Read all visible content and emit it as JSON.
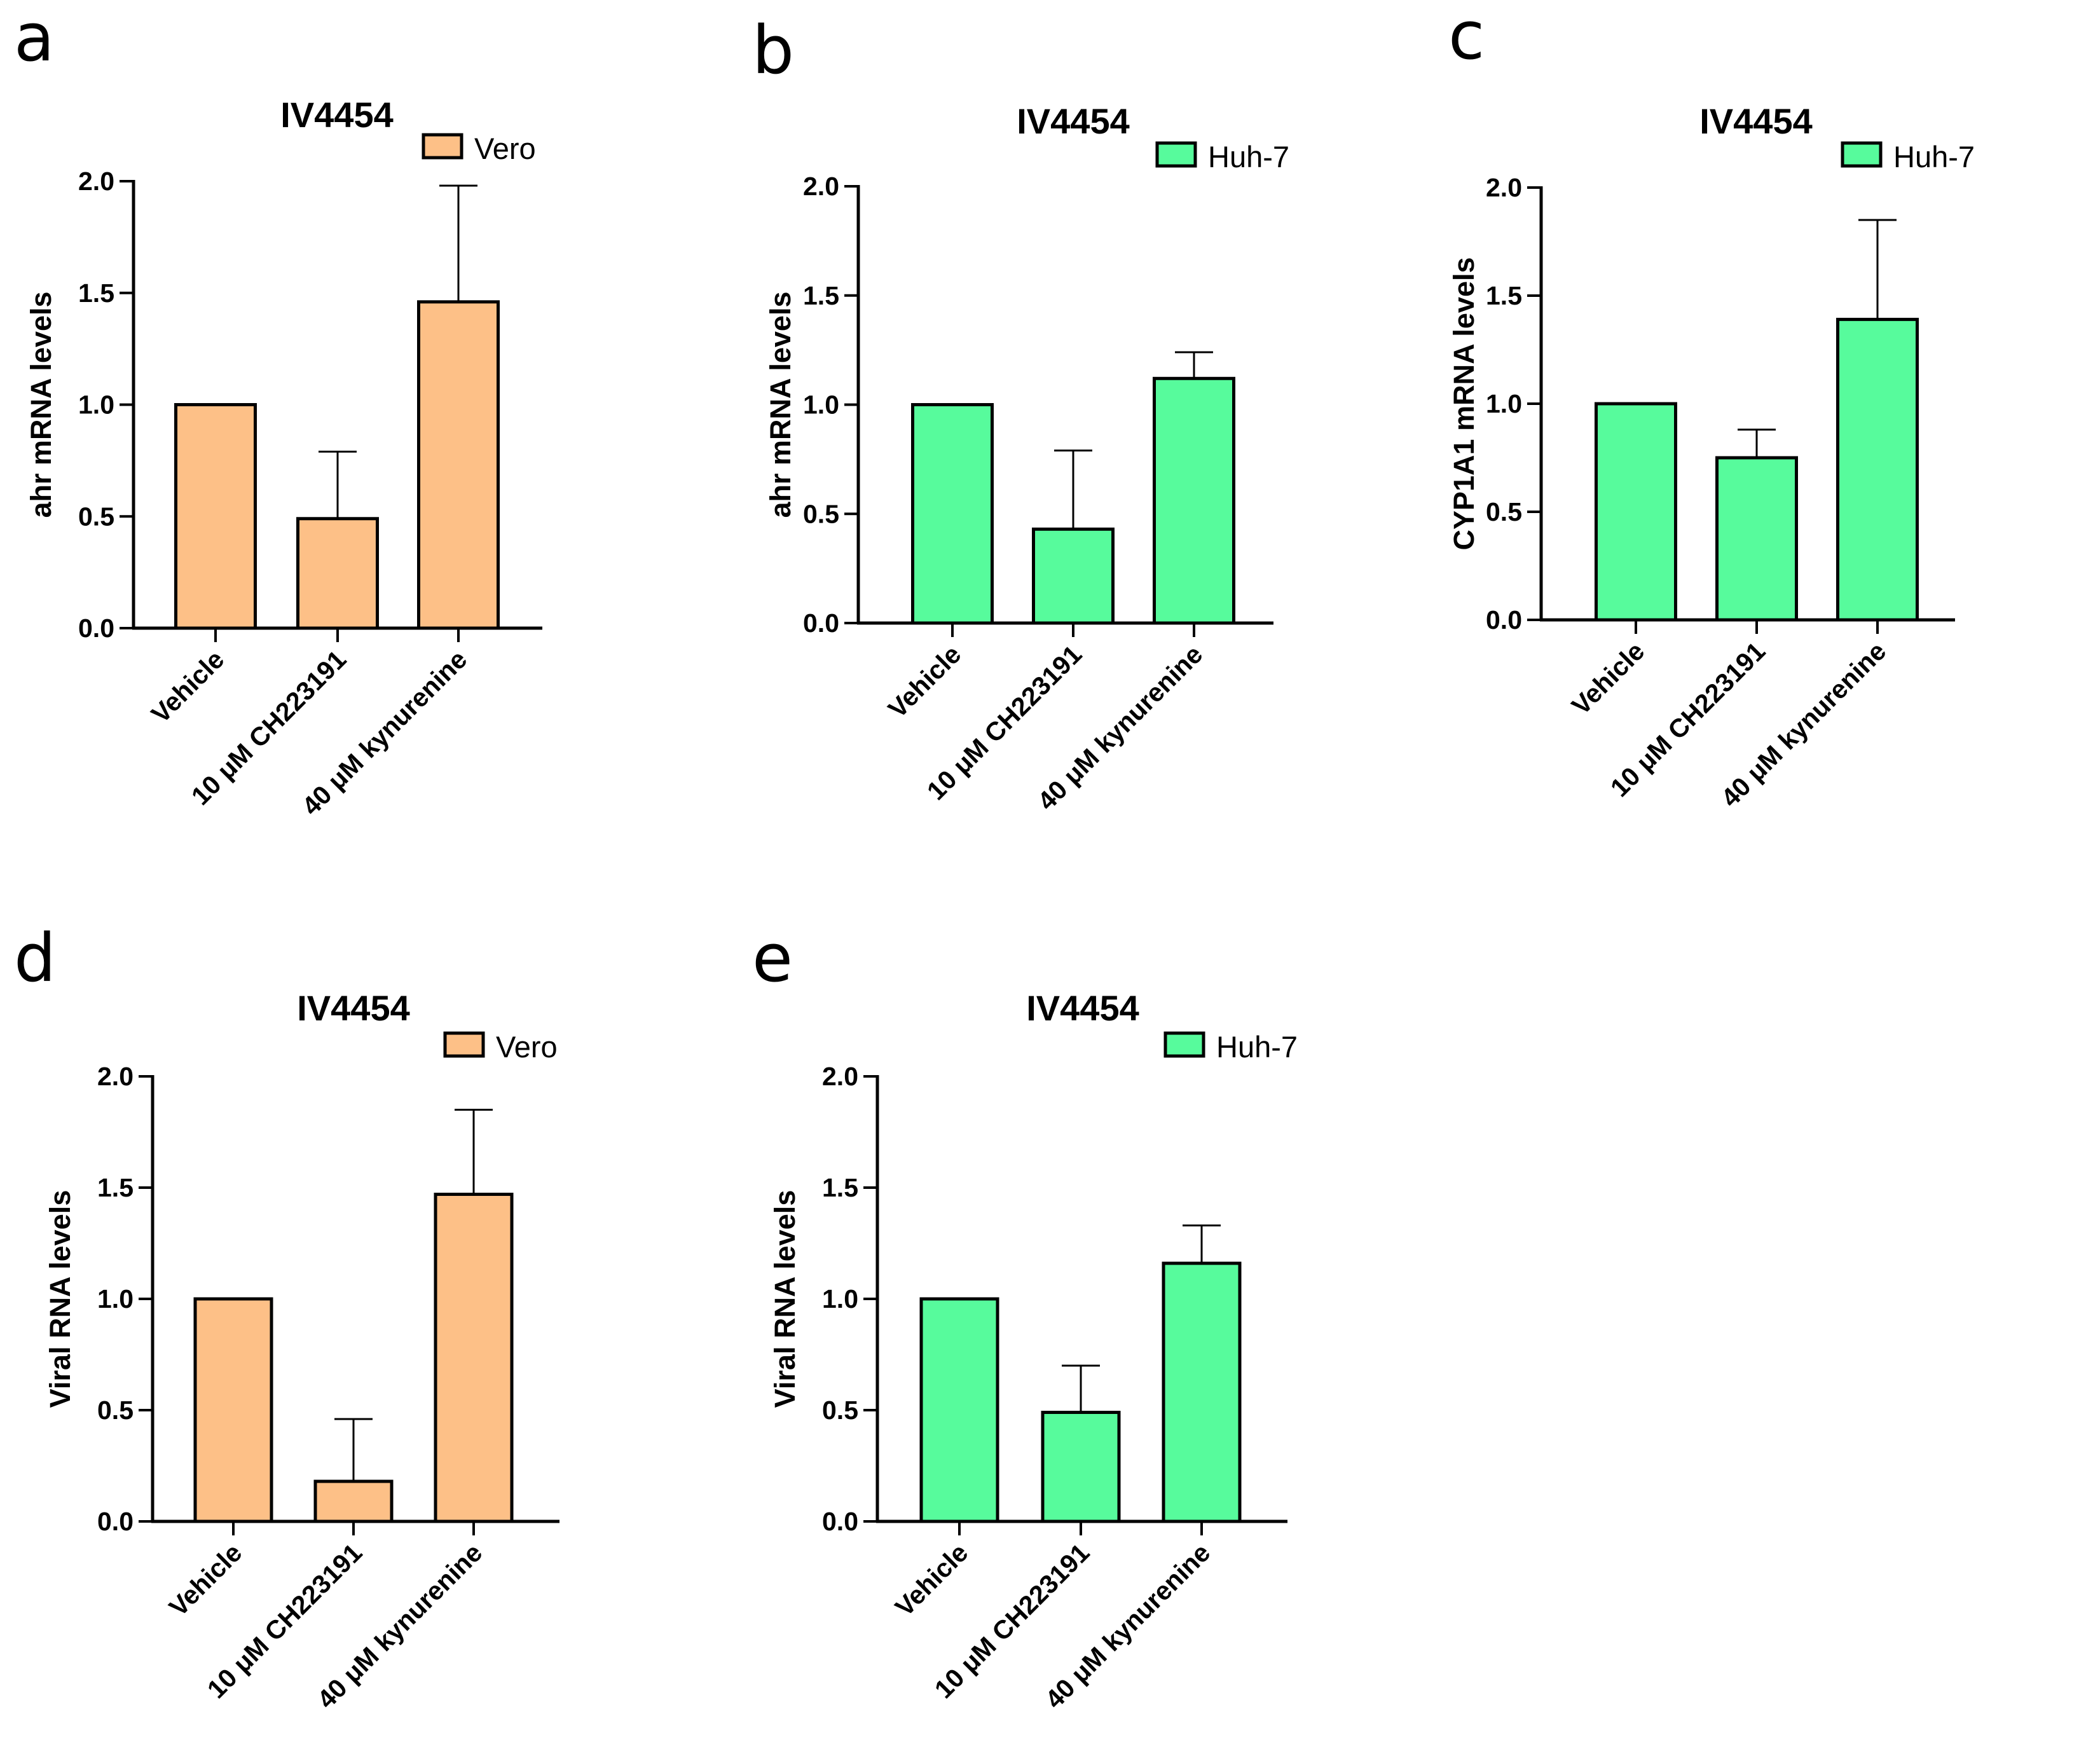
{
  "chart_data": [
    {
      "panel": "a",
      "type": "bar",
      "title": "IV4454",
      "xlabel": "",
      "ylabel": "ahr mRNA levels",
      "ylim": [
        0,
        2.0
      ],
      "yticks": [
        "0.0",
        "0.5",
        "1.0",
        "1.5",
        "2.0"
      ],
      "grid": false,
      "legend": "top-right",
      "categories": [
        "Vehicle",
        "10 μM CH223191",
        "40 μM kynurenine"
      ],
      "series": [
        {
          "name": "Vero",
          "color": "#FDC087",
          "values": [
            1.0,
            0.49,
            1.46
          ],
          "errors": [
            0.0,
            0.3,
            0.52
          ]
        }
      ]
    },
    {
      "panel": "b",
      "type": "bar",
      "title": "IV4454",
      "xlabel": "",
      "ylabel": "ahr mRNA levels",
      "ylim": [
        0,
        2.0
      ],
      "yticks": [
        "0.0",
        "0.5",
        "1.0",
        "1.5",
        "2.0"
      ],
      "grid": false,
      "legend": "top-right",
      "categories": [
        "Vehicle",
        "10 μM CH223191",
        "40 μM kynurenine"
      ],
      "series": [
        {
          "name": "Huh-7",
          "color": "#57FB9C",
          "values": [
            1.0,
            0.43,
            1.12
          ],
          "errors": [
            0.0,
            0.36,
            0.12
          ]
        }
      ]
    },
    {
      "panel": "c",
      "type": "bar",
      "title": "IV4454",
      "xlabel": "",
      "ylabel": "CYP1A1 mRNA levels",
      "ylim": [
        0,
        2.0
      ],
      "yticks": [
        "0.0",
        "0.5",
        "1.0",
        "1.5",
        "2.0"
      ],
      "grid": false,
      "legend": "top-right",
      "categories": [
        "Vehicle",
        "10 μM CH223191",
        "40 μM kynurenine"
      ],
      "series": [
        {
          "name": "Huh-7",
          "color": "#57FB9C",
          "values": [
            1.0,
            0.75,
            1.39
          ],
          "errors": [
            0.0,
            0.13,
            0.46
          ]
        }
      ]
    },
    {
      "panel": "d",
      "type": "bar",
      "title": "IV4454",
      "xlabel": "",
      "ylabel": "Viral RNA levels",
      "ylim": [
        0,
        2.0
      ],
      "yticks": [
        "0.0",
        "0.5",
        "1.0",
        "1.5",
        "2.0"
      ],
      "grid": false,
      "legend": "top-right",
      "categories": [
        "Vehicle",
        "10 μM CH223191",
        "40 μM kynurenine"
      ],
      "series": [
        {
          "name": "Vero",
          "color": "#FDC087",
          "values": [
            1.0,
            0.18,
            1.47
          ],
          "errors": [
            0.0,
            0.28,
            0.38
          ]
        }
      ]
    },
    {
      "panel": "e",
      "type": "bar",
      "title": "IV4454",
      "xlabel": "",
      "ylabel": "Viral RNA levels",
      "ylim": [
        0,
        2.0
      ],
      "yticks": [
        "0.0",
        "0.5",
        "1.0",
        "1.5",
        "2.0"
      ],
      "grid": false,
      "legend": "top-right",
      "categories": [
        "Vehicle",
        "10 μM CH223191",
        "40 μM kynurenine"
      ],
      "series": [
        {
          "name": "Huh-7",
          "color": "#57FB9C",
          "values": [
            1.0,
            0.49,
            1.16
          ],
          "errors": [
            0.0,
            0.21,
            0.17
          ]
        }
      ]
    }
  ]
}
